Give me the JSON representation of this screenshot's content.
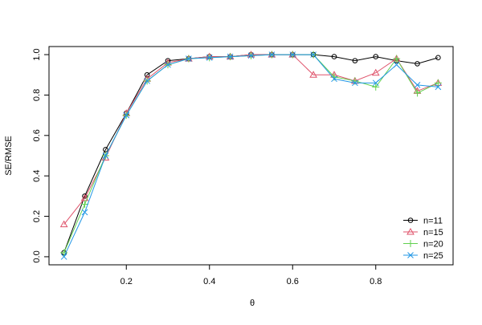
{
  "chart_data": {
    "type": "line",
    "x_label": "θ",
    "y_label": "SE/RMSE",
    "x": [
      0.05,
      0.1,
      0.15,
      0.2,
      0.25,
      0.3,
      0.35,
      0.4,
      0.45,
      0.5,
      0.55,
      0.6,
      0.65,
      0.7,
      0.75,
      0.8,
      0.85,
      0.9,
      0.95
    ],
    "series": [
      {
        "name": "n=11",
        "color": "#000000",
        "marker": "circle",
        "values": [
          0.02,
          0.3,
          0.53,
          0.71,
          0.9,
          0.97,
          0.98,
          0.99,
          0.99,
          1.0,
          1.0,
          1.0,
          1.0,
          0.99,
          0.97,
          0.99,
          0.97,
          0.955,
          0.985
        ]
      },
      {
        "name": "n=15",
        "color": "#DF536B",
        "marker": "triangle",
        "values": [
          0.16,
          0.29,
          0.49,
          0.71,
          0.88,
          0.96,
          0.98,
          0.99,
          0.99,
          1.0,
          1.0,
          1.0,
          0.9,
          0.9,
          0.87,
          0.91,
          0.98,
          0.82,
          0.86
        ]
      },
      {
        "name": "n=20",
        "color": "#61D04F",
        "marker": "plus",
        "values": [
          0.02,
          0.26,
          0.5,
          0.7,
          0.87,
          0.95,
          0.98,
          0.985,
          0.99,
          0.995,
          1.0,
          1.0,
          1.0,
          0.89,
          0.87,
          0.84,
          0.98,
          0.81,
          0.86
        ]
      },
      {
        "name": "n=25",
        "color": "#2297E6",
        "marker": "cross",
        "values": [
          0.0,
          0.22,
          0.5,
          0.7,
          0.87,
          0.95,
          0.98,
          0.985,
          0.99,
          0.995,
          1.0,
          1.0,
          1.0,
          0.88,
          0.86,
          0.86,
          0.95,
          0.85,
          0.84
        ]
      }
    ],
    "xlim": [
      0.014,
      0.986
    ],
    "ylim": [
      -0.04,
      1.04
    ],
    "xticks": [
      0.2,
      0.4,
      0.6,
      0.8
    ],
    "yticks": [
      {
        "value": 0,
        "label": "0.0"
      },
      0.2,
      0.4,
      0.6,
      0.8,
      {
        "value": 1,
        "label": "1.0"
      }
    ],
    "legend": "bottom-right"
  }
}
